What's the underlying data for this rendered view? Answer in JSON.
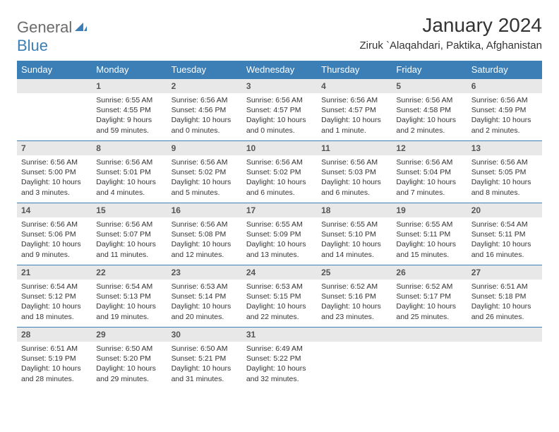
{
  "logo": {
    "word1": "General",
    "word2": "Blue"
  },
  "title": "January 2024",
  "subtitle": "Ziruk `Alaqahdari, Paktika, Afghanistan",
  "colors": {
    "header_bg": "#3b7fb6",
    "header_text": "#ffffff",
    "daynum_bg": "#e8e8e8",
    "border": "#3b7fb6",
    "text": "#333333",
    "logo_gray": "#6b6b6b",
    "logo_blue": "#3b7fb6",
    "background": "#ffffff"
  },
  "weekdays": [
    "Sunday",
    "Monday",
    "Tuesday",
    "Wednesday",
    "Thursday",
    "Friday",
    "Saturday"
  ],
  "weeks": [
    [
      {
        "n": "",
        "lines": []
      },
      {
        "n": "1",
        "lines": [
          "Sunrise: 6:55 AM",
          "Sunset: 4:55 PM",
          "Daylight: 9 hours",
          "and 59 minutes."
        ]
      },
      {
        "n": "2",
        "lines": [
          "Sunrise: 6:56 AM",
          "Sunset: 4:56 PM",
          "Daylight: 10 hours",
          "and 0 minutes."
        ]
      },
      {
        "n": "3",
        "lines": [
          "Sunrise: 6:56 AM",
          "Sunset: 4:57 PM",
          "Daylight: 10 hours",
          "and 0 minutes."
        ]
      },
      {
        "n": "4",
        "lines": [
          "Sunrise: 6:56 AM",
          "Sunset: 4:57 PM",
          "Daylight: 10 hours",
          "and 1 minute."
        ]
      },
      {
        "n": "5",
        "lines": [
          "Sunrise: 6:56 AM",
          "Sunset: 4:58 PM",
          "Daylight: 10 hours",
          "and 2 minutes."
        ]
      },
      {
        "n": "6",
        "lines": [
          "Sunrise: 6:56 AM",
          "Sunset: 4:59 PM",
          "Daylight: 10 hours",
          "and 2 minutes."
        ]
      }
    ],
    [
      {
        "n": "7",
        "lines": [
          "Sunrise: 6:56 AM",
          "Sunset: 5:00 PM",
          "Daylight: 10 hours",
          "and 3 minutes."
        ]
      },
      {
        "n": "8",
        "lines": [
          "Sunrise: 6:56 AM",
          "Sunset: 5:01 PM",
          "Daylight: 10 hours",
          "and 4 minutes."
        ]
      },
      {
        "n": "9",
        "lines": [
          "Sunrise: 6:56 AM",
          "Sunset: 5:02 PM",
          "Daylight: 10 hours",
          "and 5 minutes."
        ]
      },
      {
        "n": "10",
        "lines": [
          "Sunrise: 6:56 AM",
          "Sunset: 5:02 PM",
          "Daylight: 10 hours",
          "and 6 minutes."
        ]
      },
      {
        "n": "11",
        "lines": [
          "Sunrise: 6:56 AM",
          "Sunset: 5:03 PM",
          "Daylight: 10 hours",
          "and 6 minutes."
        ]
      },
      {
        "n": "12",
        "lines": [
          "Sunrise: 6:56 AM",
          "Sunset: 5:04 PM",
          "Daylight: 10 hours",
          "and 7 minutes."
        ]
      },
      {
        "n": "13",
        "lines": [
          "Sunrise: 6:56 AM",
          "Sunset: 5:05 PM",
          "Daylight: 10 hours",
          "and 8 minutes."
        ]
      }
    ],
    [
      {
        "n": "14",
        "lines": [
          "Sunrise: 6:56 AM",
          "Sunset: 5:06 PM",
          "Daylight: 10 hours",
          "and 9 minutes."
        ]
      },
      {
        "n": "15",
        "lines": [
          "Sunrise: 6:56 AM",
          "Sunset: 5:07 PM",
          "Daylight: 10 hours",
          "and 11 minutes."
        ]
      },
      {
        "n": "16",
        "lines": [
          "Sunrise: 6:56 AM",
          "Sunset: 5:08 PM",
          "Daylight: 10 hours",
          "and 12 minutes."
        ]
      },
      {
        "n": "17",
        "lines": [
          "Sunrise: 6:55 AM",
          "Sunset: 5:09 PM",
          "Daylight: 10 hours",
          "and 13 minutes."
        ]
      },
      {
        "n": "18",
        "lines": [
          "Sunrise: 6:55 AM",
          "Sunset: 5:10 PM",
          "Daylight: 10 hours",
          "and 14 minutes."
        ]
      },
      {
        "n": "19",
        "lines": [
          "Sunrise: 6:55 AM",
          "Sunset: 5:11 PM",
          "Daylight: 10 hours",
          "and 15 minutes."
        ]
      },
      {
        "n": "20",
        "lines": [
          "Sunrise: 6:54 AM",
          "Sunset: 5:11 PM",
          "Daylight: 10 hours",
          "and 16 minutes."
        ]
      }
    ],
    [
      {
        "n": "21",
        "lines": [
          "Sunrise: 6:54 AM",
          "Sunset: 5:12 PM",
          "Daylight: 10 hours",
          "and 18 minutes."
        ]
      },
      {
        "n": "22",
        "lines": [
          "Sunrise: 6:54 AM",
          "Sunset: 5:13 PM",
          "Daylight: 10 hours",
          "and 19 minutes."
        ]
      },
      {
        "n": "23",
        "lines": [
          "Sunrise: 6:53 AM",
          "Sunset: 5:14 PM",
          "Daylight: 10 hours",
          "and 20 minutes."
        ]
      },
      {
        "n": "24",
        "lines": [
          "Sunrise: 6:53 AM",
          "Sunset: 5:15 PM",
          "Daylight: 10 hours",
          "and 22 minutes."
        ]
      },
      {
        "n": "25",
        "lines": [
          "Sunrise: 6:52 AM",
          "Sunset: 5:16 PM",
          "Daylight: 10 hours",
          "and 23 minutes."
        ]
      },
      {
        "n": "26",
        "lines": [
          "Sunrise: 6:52 AM",
          "Sunset: 5:17 PM",
          "Daylight: 10 hours",
          "and 25 minutes."
        ]
      },
      {
        "n": "27",
        "lines": [
          "Sunrise: 6:51 AM",
          "Sunset: 5:18 PM",
          "Daylight: 10 hours",
          "and 26 minutes."
        ]
      }
    ],
    [
      {
        "n": "28",
        "lines": [
          "Sunrise: 6:51 AM",
          "Sunset: 5:19 PM",
          "Daylight: 10 hours",
          "and 28 minutes."
        ]
      },
      {
        "n": "29",
        "lines": [
          "Sunrise: 6:50 AM",
          "Sunset: 5:20 PM",
          "Daylight: 10 hours",
          "and 29 minutes."
        ]
      },
      {
        "n": "30",
        "lines": [
          "Sunrise: 6:50 AM",
          "Sunset: 5:21 PM",
          "Daylight: 10 hours",
          "and 31 minutes."
        ]
      },
      {
        "n": "31",
        "lines": [
          "Sunrise: 6:49 AM",
          "Sunset: 5:22 PM",
          "Daylight: 10 hours",
          "and 32 minutes."
        ]
      },
      {
        "n": "",
        "lines": []
      },
      {
        "n": "",
        "lines": []
      },
      {
        "n": "",
        "lines": []
      }
    ]
  ]
}
